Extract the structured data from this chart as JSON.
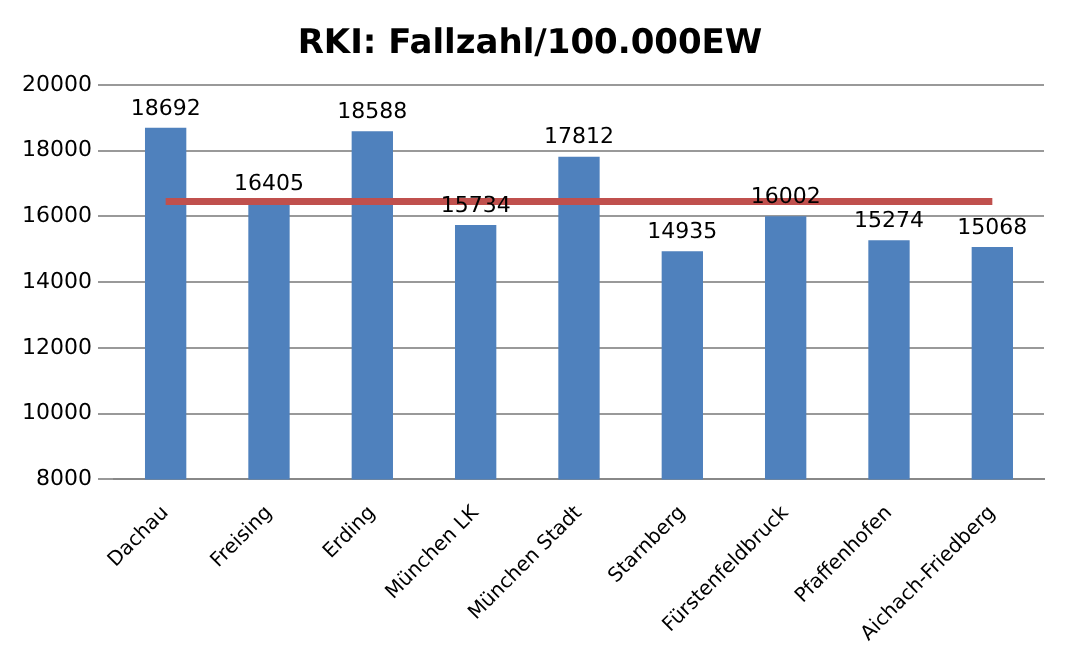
{
  "chart_data": {
    "type": "bar",
    "title": "RKI: Fallzahl/100.000EW",
    "categories": [
      "Dachau",
      "Freising",
      "Erding",
      "München LK",
      "München Stadt",
      "Starnberg",
      "Fürstenfeldbruck",
      "Pfaffenhofen",
      "Aichach-Friedberg"
    ],
    "series": [
      {
        "color": "#4f81bd",
        "values": [
          18692,
          16405,
          18588,
          15734,
          17812,
          14935,
          16002,
          15274,
          15068
        ],
        "value_labels": [
          "18692",
          "16405",
          "18588",
          "15734",
          "17812",
          "14935",
          "16002",
          "15274",
          "15068"
        ]
      },
      {
        "type": "line",
        "color": "#c0504d",
        "values": [
          16450,
          16450,
          16450,
          16450,
          16450,
          16450,
          16450,
          16450,
          16450
        ]
      }
    ],
    "ylim": [
      8000,
      20000
    ],
    "yticks": [
      8000,
      10000,
      12000,
      14000,
      16000,
      18000,
      20000
    ],
    "grid": "y",
    "legend": false
  }
}
